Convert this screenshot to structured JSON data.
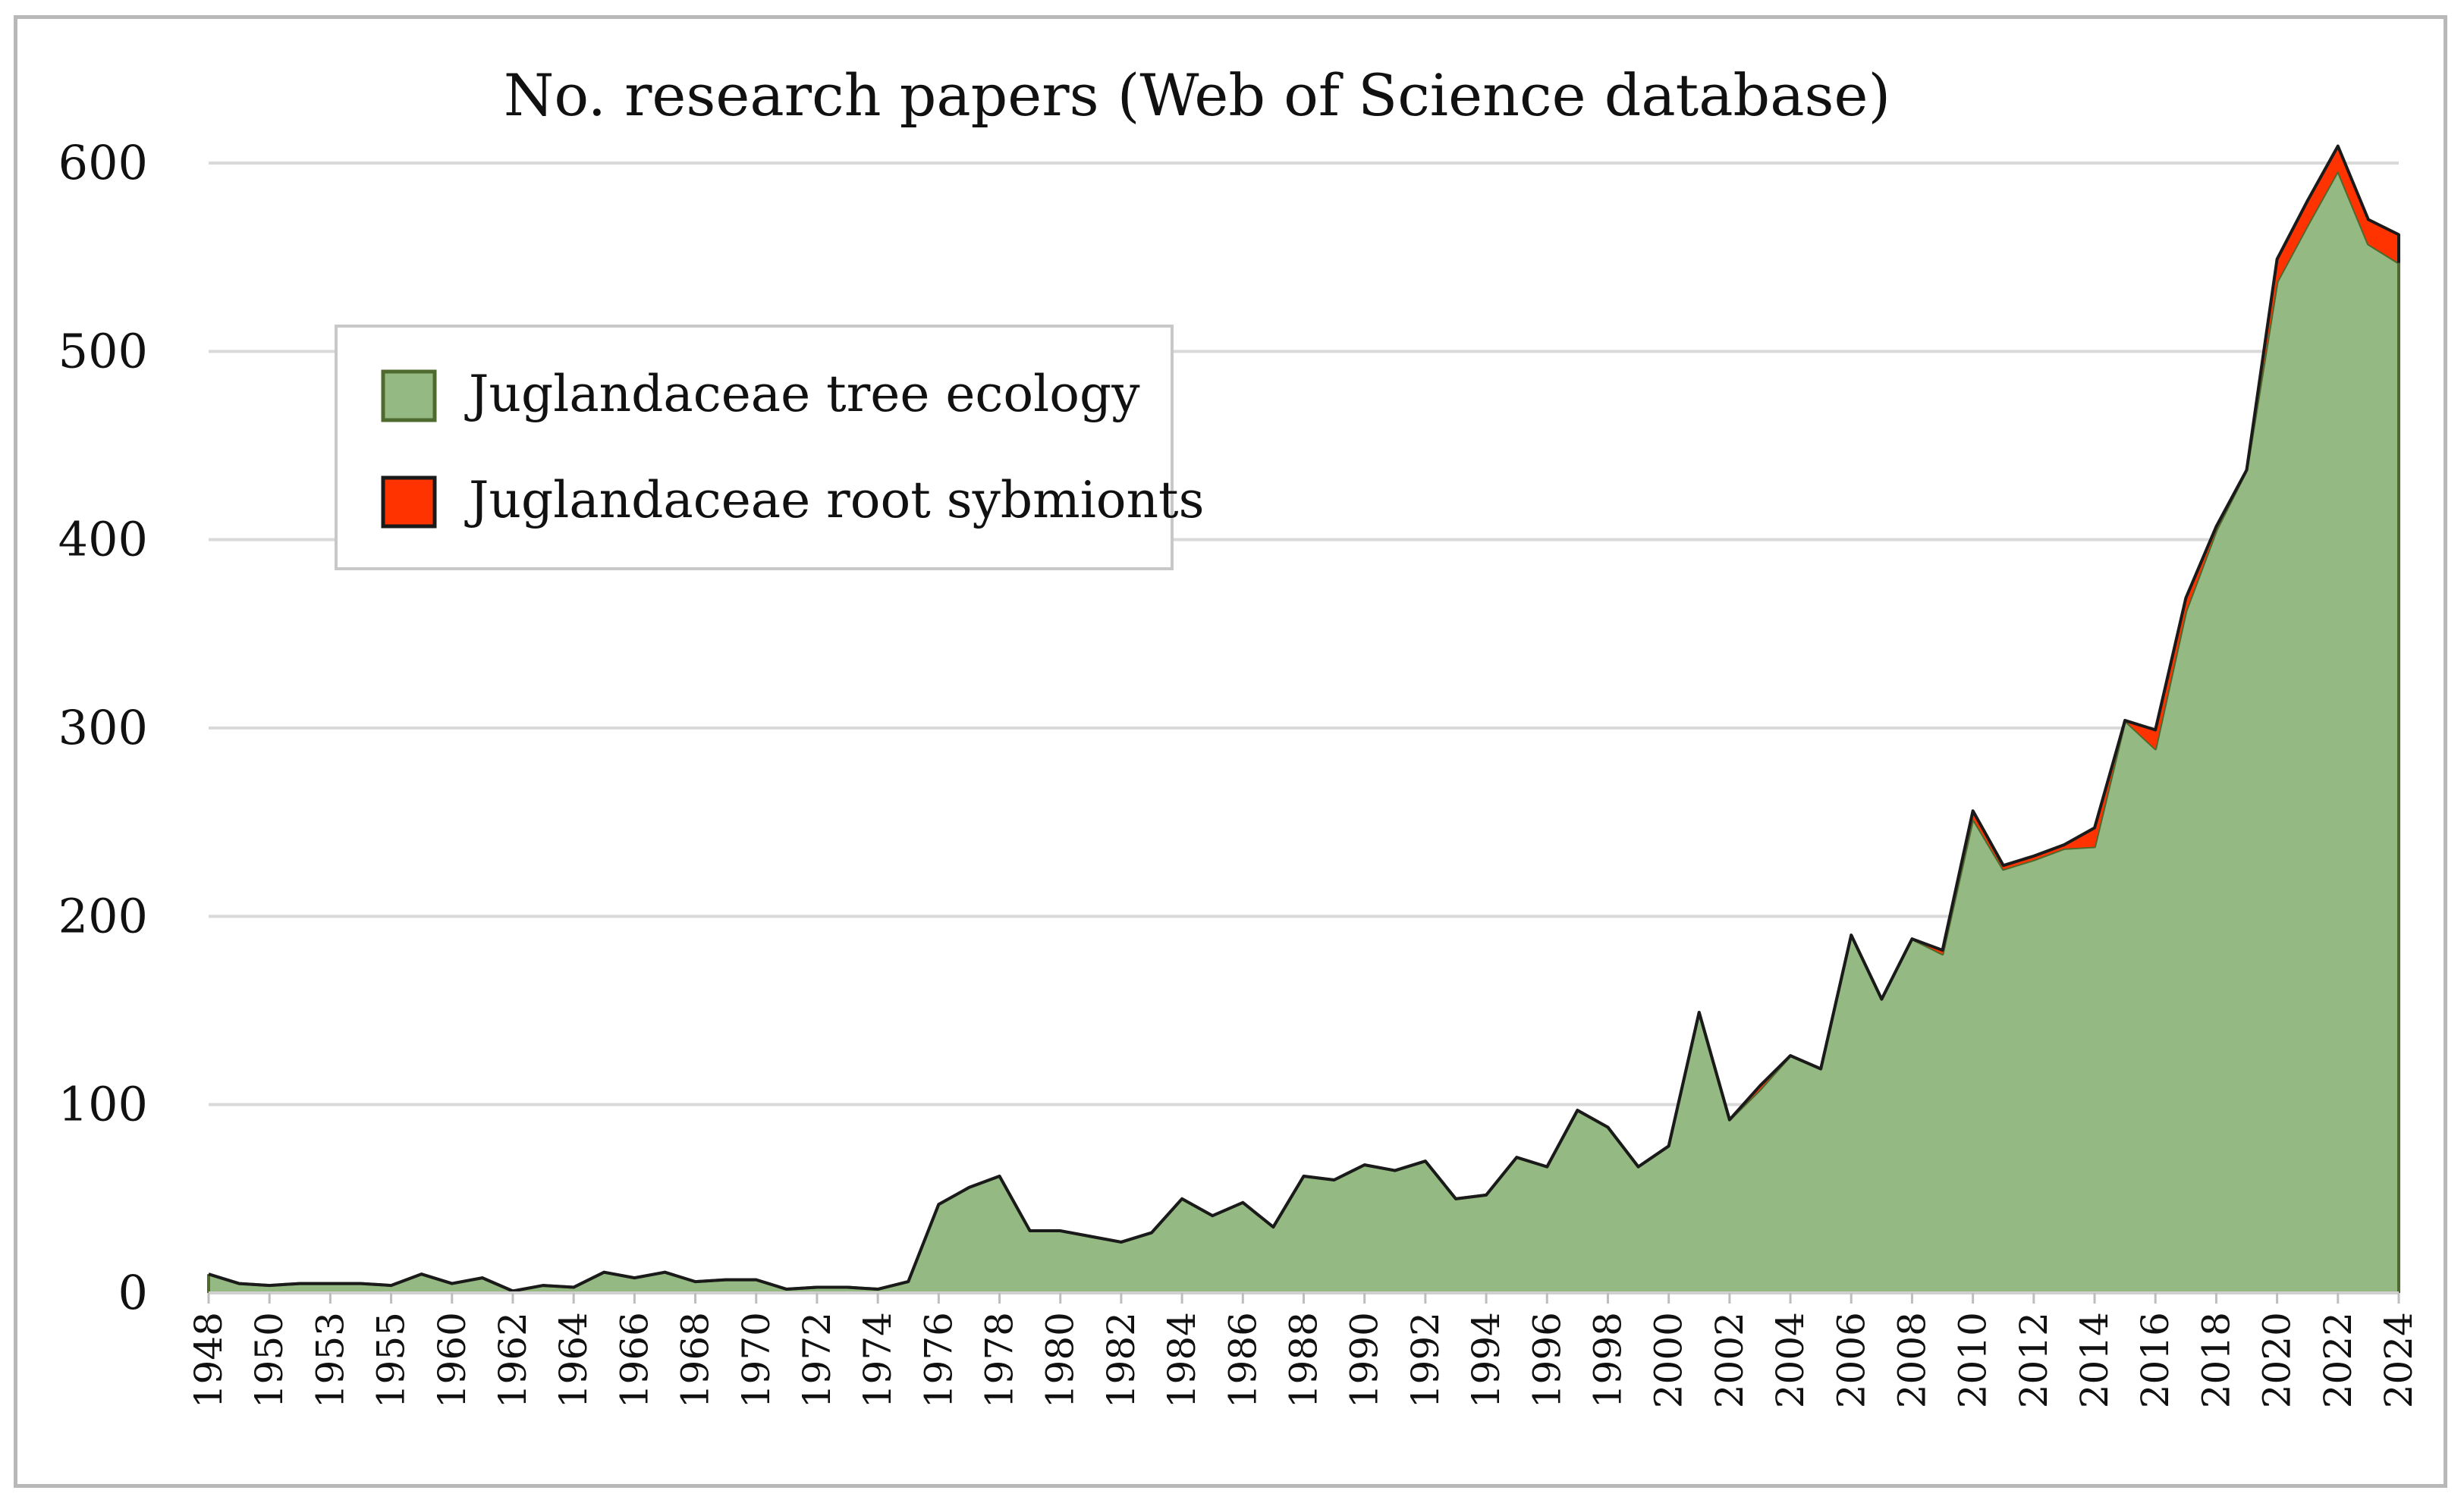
{
  "chart_data": {
    "type": "area",
    "stacked": true,
    "title": "No. research papers (Web of Science database)",
    "xlabel": "",
    "ylabel": "",
    "ylim": [
      0,
      600
    ],
    "yticks": [
      0,
      100,
      200,
      300,
      400,
      500,
      600
    ],
    "grid": "horizontal",
    "legend": "upper-left",
    "x": [
      1948,
      1949,
      1950,
      1951,
      1953,
      1954,
      1955,
      1959,
      1960,
      1961,
      1962,
      1963,
      1964,
      1965,
      1966,
      1967,
      1968,
      1969,
      1970,
      1971,
      1972,
      1973,
      1974,
      1975,
      1976,
      1977,
      1978,
      1979,
      1980,
      1981,
      1982,
      1983,
      1984,
      1985,
      1986,
      1987,
      1988,
      1989,
      1990,
      1991,
      1992,
      1993,
      1994,
      1995,
      1996,
      1997,
      1998,
      1999,
      2000,
      2001,
      2002,
      2003,
      2004,
      2005,
      2006,
      2007,
      2008,
      2009,
      2010,
      2011,
      2012,
      2013,
      2014,
      2015,
      2016,
      2017,
      2018,
      2019,
      2020,
      2021,
      2022,
      2023,
      2024
    ],
    "x_tick_labels": [
      "1948",
      "1950",
      "1953",
      "1955",
      "1960",
      "1962",
      "1964",
      "1966",
      "1968",
      "1970",
      "1972",
      "1974",
      "1976",
      "1978",
      "1980",
      "1982",
      "1984",
      "1986",
      "1988",
      "1990",
      "1992",
      "1994",
      "1996",
      "1998",
      "2000",
      "2002",
      "2004",
      "2006",
      "2008",
      "2010",
      "2012",
      "2014",
      "2016",
      "2018",
      "2020",
      "2022",
      "2024"
    ],
    "series": [
      {
        "name": "Juglandaceae tree ecology",
        "color": "#95b983",
        "edge": "#4f6a2e",
        "values": [
          10,
          5,
          4,
          5,
          5,
          5,
          4,
          10,
          5,
          8,
          1,
          4,
          3,
          11,
          8,
          11,
          6,
          7,
          7,
          2,
          3,
          3,
          2,
          6,
          47,
          56,
          62,
          33,
          33,
          30,
          27,
          32,
          50,
          41,
          48,
          35,
          62,
          60,
          68,
          65,
          70,
          50,
          52,
          72,
          67,
          97,
          88,
          67,
          78,
          149,
          92,
          108,
          126,
          119,
          190,
          156,
          188,
          180,
          252,
          225,
          230,
          236,
          237,
          304,
          289,
          362,
          405,
          437,
          537,
          567,
          596,
          557,
          547
        ]
      },
      {
        "name": "Juglandaceae root sybmionts",
        "color": "#ff3300",
        "edge": "#1a1a1a",
        "values": [
          0,
          0,
          0,
          0,
          0,
          0,
          0,
          0,
          0,
          0,
          0,
          0,
          0,
          0,
          0,
          0,
          0,
          0,
          0,
          0,
          0,
          0,
          0,
          0,
          0,
          0,
          0,
          0,
          0,
          0,
          0,
          0,
          0,
          0,
          0,
          0,
          0,
          0,
          0,
          0,
          0,
          0,
          0,
          0,
          0,
          0,
          0,
          0,
          0,
          0,
          0,
          2,
          0,
          0,
          0,
          0,
          0,
          2,
          4,
          2,
          2,
          2,
          10,
          0,
          10,
          7,
          2,
          0,
          12,
          13,
          13,
          13,
          15
        ]
      }
    ]
  }
}
